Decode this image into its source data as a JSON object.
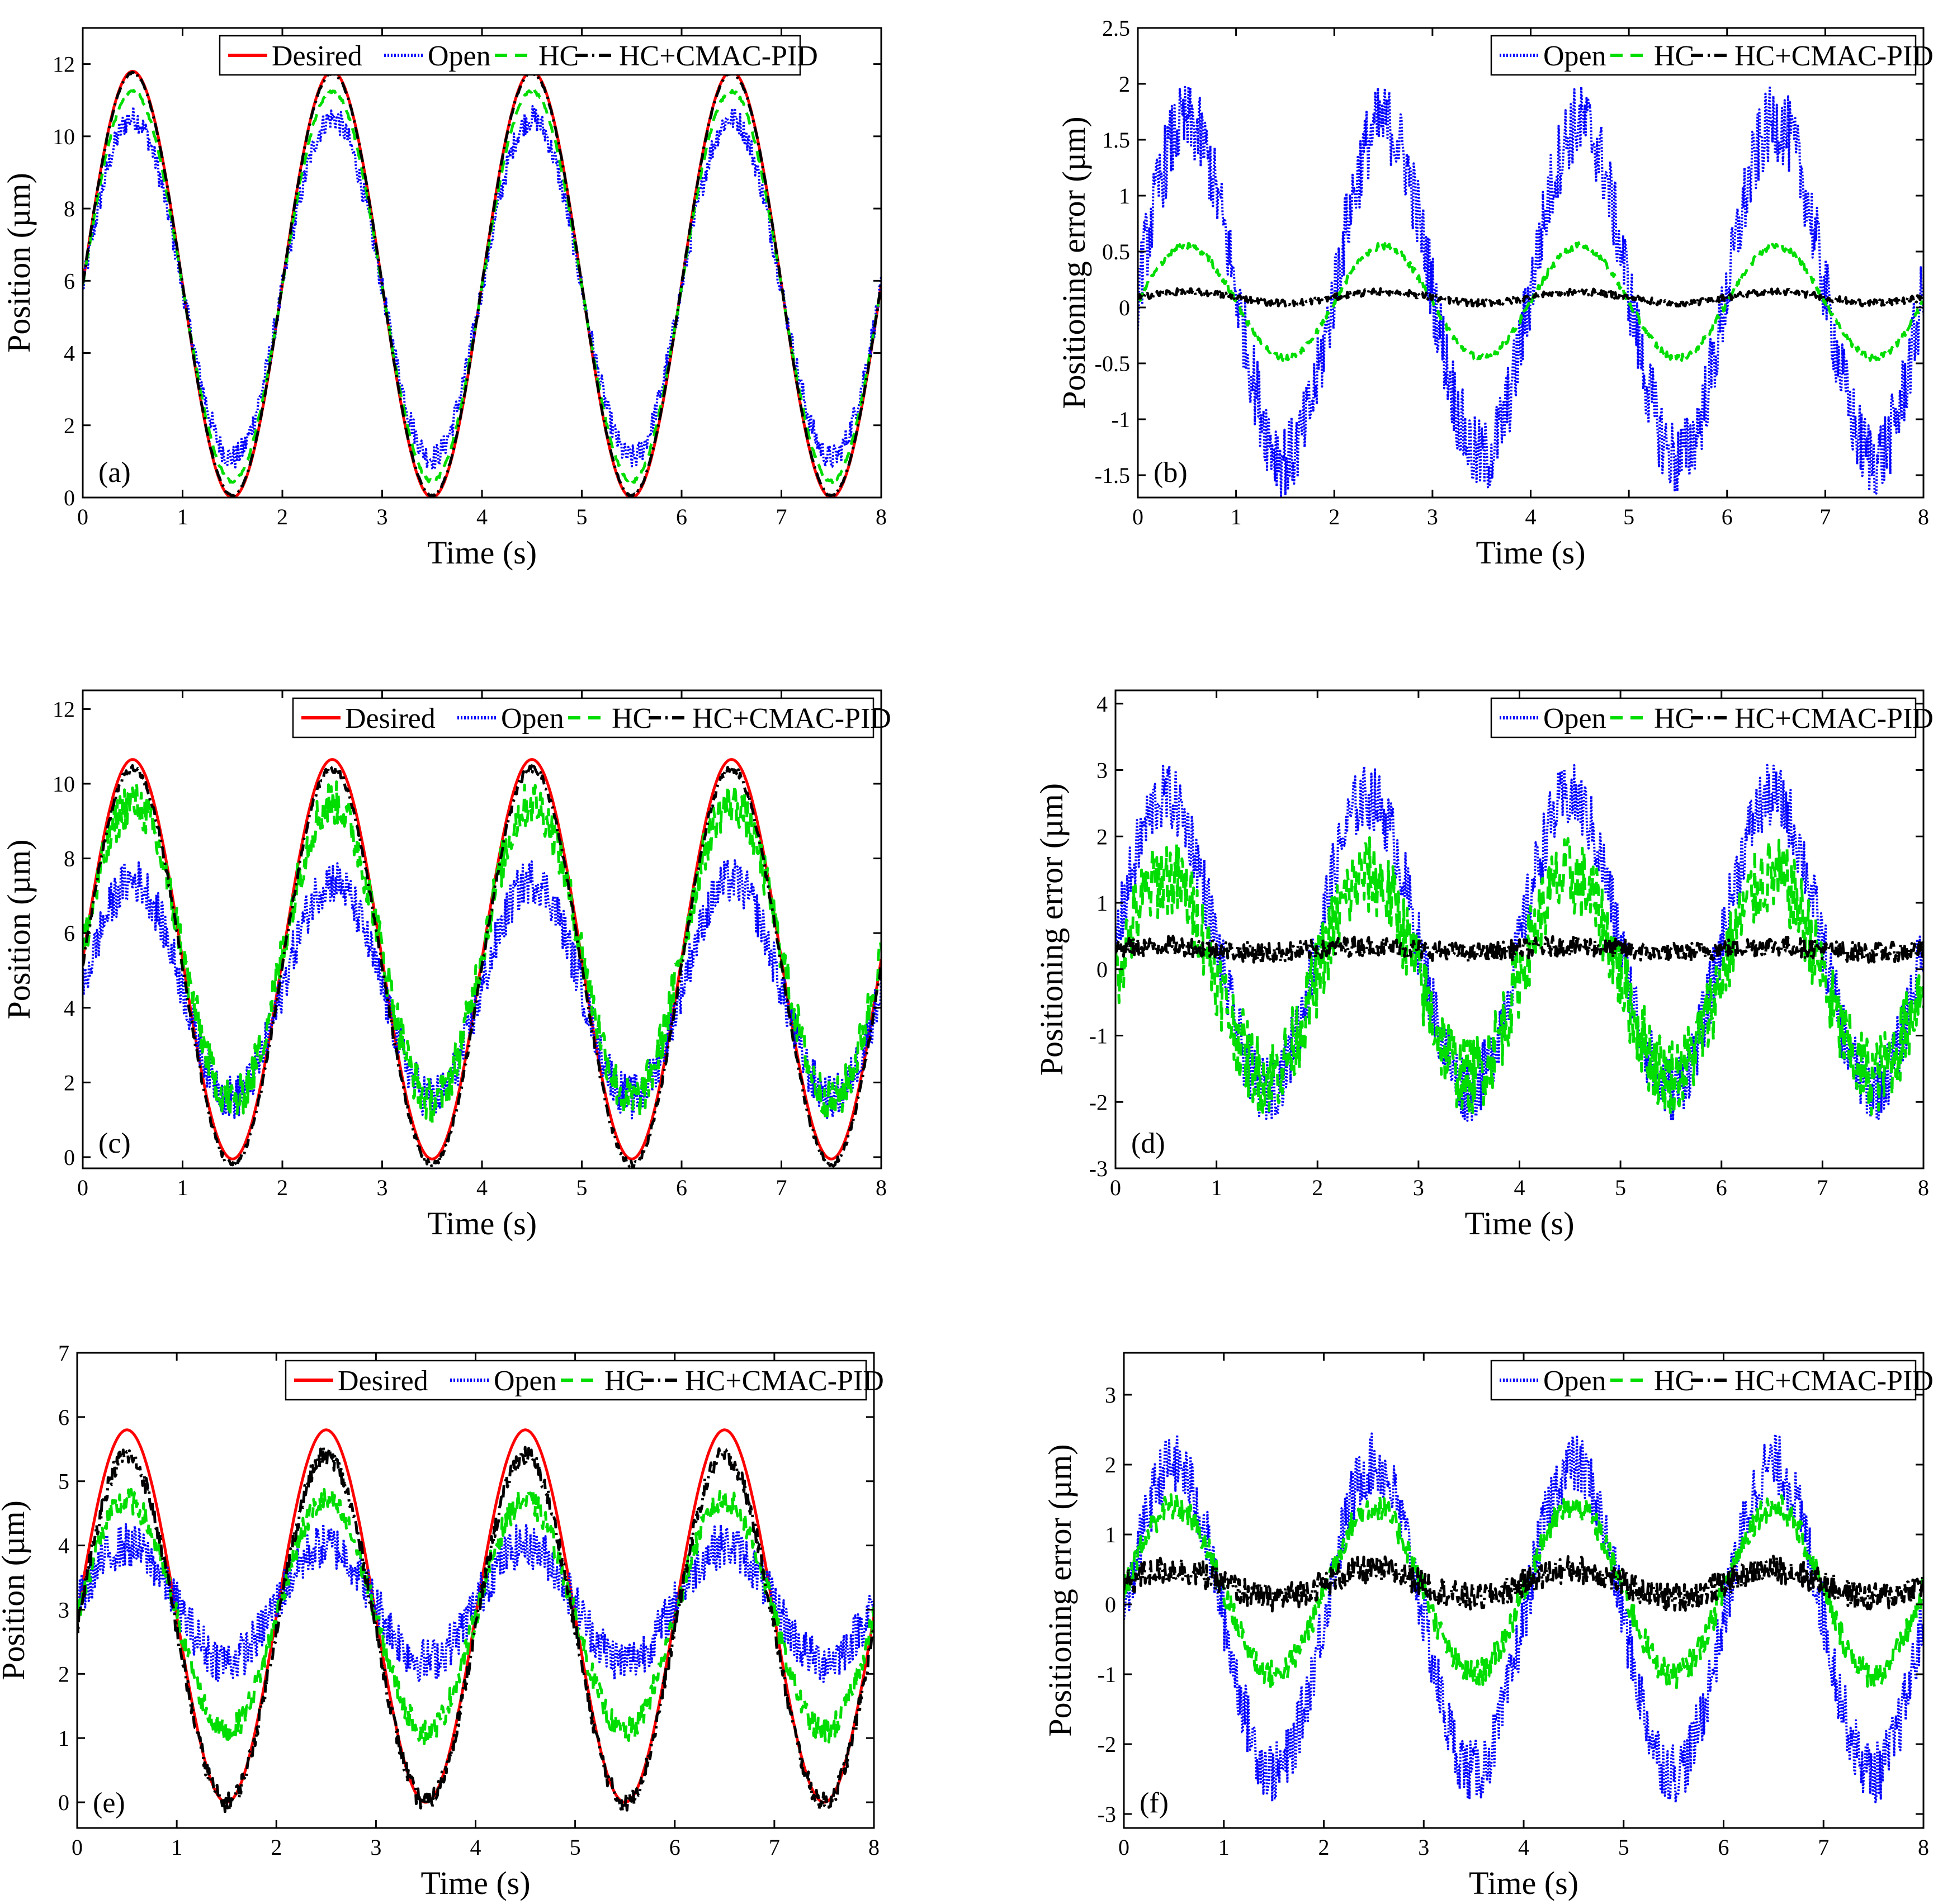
{
  "figure": {
    "description_title": ""
  },
  "chart_data": [
    {
      "id": "a",
      "type": "line",
      "panel_label": "(a)",
      "xlabel": "Time (s)",
      "ylabel": "Position (µm)",
      "xlim": [
        0,
        8
      ],
      "ylim": [
        0,
        13
      ],
      "xticks": [
        0,
        1,
        2,
        3,
        4,
        5,
        6,
        7,
        8
      ],
      "yticks": [
        0,
        2,
        4,
        6,
        8,
        10,
        12
      ],
      "legend_position": "top",
      "series": [
        {
          "name": "Desired",
          "style": "solid",
          "color": "#ff0000",
          "offset": 5.9,
          "amplitude": 5.9,
          "period": 2,
          "noise": 0
        },
        {
          "name": "Open",
          "style": "dotted",
          "color": "#0000ff",
          "offset": 5.8,
          "amplitude": 4.7,
          "period": 2,
          "noise": 0.35
        },
        {
          "name": "HC",
          "style": "dashed",
          "color": "#00dd00",
          "offset": 5.85,
          "amplitude": 5.4,
          "period": 2,
          "noise": 0.05
        },
        {
          "name": "HC+CMAC-PID",
          "style": "dashdot",
          "color": "#000000",
          "offset": 5.9,
          "amplitude": 5.85,
          "period": 2,
          "noise": 0.03
        }
      ]
    },
    {
      "id": "b",
      "type": "line",
      "panel_label": "(b)",
      "xlabel": "Time (s)",
      "ylabel": "Positioning error (µm)",
      "xlim": [
        0,
        8
      ],
      "ylim": [
        -1.7,
        2.5
      ],
      "xticks": [
        0,
        1,
        2,
        3,
        4,
        5,
        6,
        7,
        8
      ],
      "yticks": [
        -1.5,
        -1,
        -0.5,
        0,
        0.5,
        1,
        1.5,
        2,
        2.5
      ],
      "legend_position": "top-right",
      "series": [
        {
          "name": "Open",
          "style": "dotted",
          "color": "#0000ff",
          "offset": 0.15,
          "amplitude": 1.5,
          "period": 2,
          "noise": 0.35
        },
        {
          "name": "HC",
          "style": "dashed",
          "color": "#00dd00",
          "offset": 0.05,
          "amplitude": 0.5,
          "period": 2,
          "noise": 0.03
        },
        {
          "name": "HC+CMAC-PID",
          "style": "dashdot",
          "color": "#000000",
          "offset": 0.09,
          "amplitude": 0.05,
          "period": 2,
          "noise": 0.03
        }
      ]
    },
    {
      "id": "c",
      "type": "line",
      "panel_label": "(c)",
      "xlabel": "Time (s)",
      "ylabel": "Position (µm)",
      "xlim": [
        0,
        8
      ],
      "ylim": [
        -0.3,
        12.5
      ],
      "xticks": [
        0,
        1,
        2,
        3,
        4,
        5,
        6,
        7,
        8
      ],
      "yticks": [
        0,
        2,
        4,
        6,
        8,
        10,
        12
      ],
      "legend_position": "top-right",
      "series": [
        {
          "name": "Desired",
          "style": "solid",
          "color": "#ff0000",
          "offset": 5.3,
          "amplitude": 5.35,
          "period": 2,
          "noise": 0
        },
        {
          "name": "Open",
          "style": "dotted",
          "color": "#0000ff",
          "offset": 4.5,
          "amplitude": 2.9,
          "period": 2,
          "noise": 0.6
        },
        {
          "name": "HC",
          "style": "dashed",
          "color": "#00dd00",
          "offset": 5.5,
          "amplitude": 4.0,
          "period": 2,
          "noise": 0.6
        },
        {
          "name": "HC+CMAC-PID",
          "style": "dashdot",
          "color": "#000000",
          "offset": 5.1,
          "amplitude": 5.3,
          "period": 2,
          "noise": 0.1
        }
      ]
    },
    {
      "id": "d",
      "type": "line",
      "panel_label": "(d)",
      "xlabel": "Time (s)",
      "ylabel": "Positioning error (µm)",
      "xlim": [
        0,
        8
      ],
      "ylim": [
        -3,
        4.2
      ],
      "xticks": [
        0,
        1,
        2,
        3,
        4,
        5,
        6,
        7,
        8
      ],
      "yticks": [
        -3,
        -2,
        -1,
        0,
        1,
        2,
        3,
        4
      ],
      "legend_position": "top-right",
      "series": [
        {
          "name": "Open",
          "style": "dotted",
          "color": "#0000ff",
          "offset": 0.4,
          "amplitude": 2.2,
          "period": 2,
          "noise": 0.5
        },
        {
          "name": "HC",
          "style": "dashed",
          "color": "#00dd00",
          "offset": -0.1,
          "amplitude": 1.5,
          "period": 2,
          "noise": 0.6
        },
        {
          "name": "HC+CMAC-PID",
          "style": "dashdot",
          "color": "#000000",
          "offset": 0.3,
          "amplitude": 0.05,
          "period": 2,
          "noise": 0.15
        }
      ]
    },
    {
      "id": "e",
      "type": "line",
      "panel_label": "(e)",
      "xlabel": "Time (s)",
      "ylabel": "Position (µm)",
      "xlim": [
        0,
        8
      ],
      "ylim": [
        -0.4,
        7
      ],
      "xticks": [
        0,
        1,
        2,
        3,
        4,
        5,
        6,
        7,
        8
      ],
      "yticks": [
        0,
        1,
        2,
        3,
        4,
        5,
        6,
        7
      ],
      "legend_position": "top-right",
      "series": [
        {
          "name": "Desired",
          "style": "solid",
          "color": "#ff0000",
          "offset": 2.9,
          "amplitude": 2.9,
          "period": 2,
          "noise": 0
        },
        {
          "name": "Open",
          "style": "dotted",
          "color": "#0000ff",
          "offset": 3.1,
          "amplitude": 0.9,
          "period": 2,
          "noise": 0.35
        },
        {
          "name": "HC",
          "style": "dashed",
          "color": "#00dd00",
          "offset": 2.9,
          "amplitude": 1.8,
          "period": 2,
          "noise": 0.2
        },
        {
          "name": "HC+CMAC-PID",
          "style": "dashdot",
          "color": "#000000",
          "offset": 2.7,
          "amplitude": 2.7,
          "period": 2,
          "noise": 0.15
        }
      ]
    },
    {
      "id": "f",
      "type": "line",
      "panel_label": "(f)",
      "xlabel": "Time (s)",
      "ylabel": "Positioning error (µm)",
      "xlim": [
        0,
        8
      ],
      "ylim": [
        -3.2,
        3.6
      ],
      "xticks": [
        0,
        1,
        2,
        3,
        4,
        5,
        6,
        7,
        8
      ],
      "yticks": [
        -3,
        -2,
        -1,
        0,
        1,
        2,
        3
      ],
      "legend_position": "top-right",
      "series": [
        {
          "name": "Open",
          "style": "dotted",
          "color": "#0000ff",
          "offset": -0.2,
          "amplitude": 2.2,
          "period": 2,
          "noise": 0.45
        },
        {
          "name": "HC",
          "style": "dashed",
          "color": "#00dd00",
          "offset": 0.2,
          "amplitude": 1.2,
          "period": 2,
          "noise": 0.2
        },
        {
          "name": "HC+CMAC-PID",
          "style": "dashdot",
          "color": "#000000",
          "offset": 0.3,
          "amplitude": 0.2,
          "period": 2,
          "noise": 0.2
        }
      ]
    }
  ]
}
